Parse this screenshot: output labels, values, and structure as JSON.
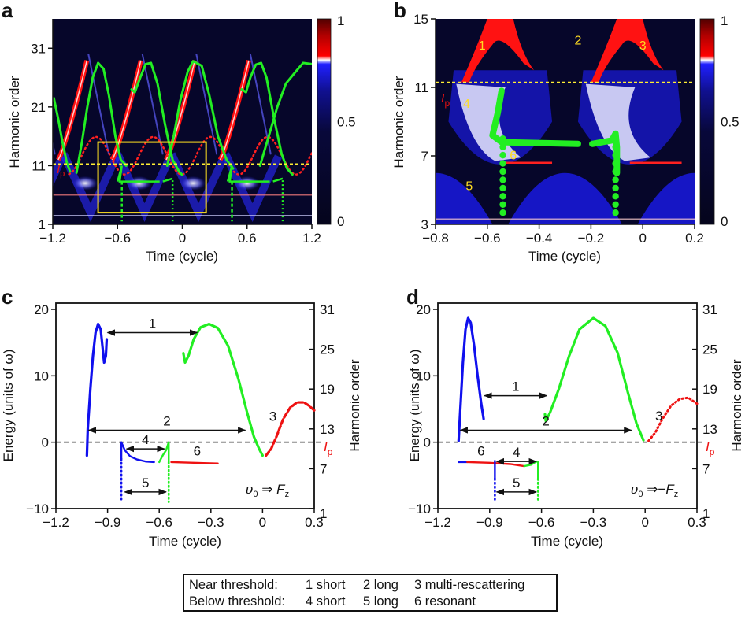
{
  "chart_data": [
    {
      "panel": "a",
      "type": "heatmap",
      "title": "",
      "xlabel": "Time (cycle)",
      "ylabel": "Harmonic order",
      "xlim": [
        -1.2,
        1.2
      ],
      "ylim": [
        1,
        36
      ],
      "xticks": [
        -1.2,
        -0.6,
        0,
        0.6,
        1.2
      ],
      "xtick_labels": [
        "−1.2",
        "−0.6",
        "0",
        "0.6",
        "1.2"
      ],
      "yticks": [
        1,
        11,
        21,
        31
      ],
      "ytick_labels": [
        "1",
        "11",
        "21",
        "31"
      ],
      "colorbar": {
        "range": [
          0,
          1
        ],
        "ticks": [
          0,
          0.5,
          1
        ],
        "tick_labels": [
          "0",
          "0.5",
          "1"
        ],
        "colors": [
          "#05051f",
          "#0a0a60",
          "#1a1aff",
          "#ffffff",
          "#ff0000",
          "#600000"
        ]
      },
      "ip_level": 11.3,
      "ip_label": "Ip",
      "highlight_box": {
        "x": [
          -0.78,
          0.22
        ],
        "y": [
          3,
          15
        ]
      },
      "overlays": [
        {
          "name": "classical returns (green)",
          "style": "solid",
          "color": "#22ee22",
          "arches": [
            {
              "start": -1.2,
              "peak": -0.95,
              "end": -1.02
            },
            {
              "start": -0.45,
              "peak": -0.28,
              "end": 0.02
            },
            {
              "start": -0.25,
              "peak": 0.22,
              "end": 0.5
            },
            {
              "start": 0.55,
              "peak": 0.72,
              "end": 1.02
            },
            {
              "start": 0.75,
              "peak": 1.2,
              "end": 1.2
            }
          ]
        },
        {
          "name": "multi-rescattering (red dotted)",
          "style": "dotted",
          "color": "#ff2222",
          "peaks_x": [
            -0.8,
            -0.25,
            0.28,
            0.8
          ],
          "peak_y": 16
        }
      ]
    },
    {
      "panel": "b",
      "type": "heatmap",
      "xlabel": "Time (cycle)",
      "ylabel": "Harmonic order",
      "xlim": [
        -0.8,
        0.2
      ],
      "ylim": [
        3,
        15
      ],
      "xticks": [
        -0.8,
        -0.6,
        -0.4,
        -0.2,
        0,
        0.2
      ],
      "xtick_labels": [
        "−0.8",
        "−0.6",
        "−0.4",
        "−0.2",
        "0",
        "0.2"
      ],
      "yticks": [
        3,
        7,
        11,
        15
      ],
      "ytick_labels": [
        "3",
        "7",
        "11",
        "15"
      ],
      "colorbar": {
        "range": [
          0,
          1
        ],
        "ticks": [
          0,
          0.5,
          1
        ],
        "tick_labels": [
          "0",
          "0.5",
          "1"
        ]
      },
      "ip_level": 11.3,
      "ip_label": "Ip",
      "annotations": [
        {
          "text": "1",
          "x": -0.62,
          "y": 13.2
        },
        {
          "text": "2",
          "x": -0.25,
          "y": 13.5
        },
        {
          "text": "3",
          "x": 0.0,
          "y": 13.2
        },
        {
          "text": "4",
          "x": -0.68,
          "y": 9.8
        },
        {
          "text": "5",
          "x": -0.67,
          "y": 5.0
        },
        {
          "text": "6",
          "x": -0.5,
          "y": 6.8
        }
      ]
    },
    {
      "panel": "c",
      "type": "line",
      "xlabel": "Time (cycle)",
      "ylabel": "Energy (units of ω)",
      "ylabel_right": "Harmonic order",
      "xlim": [
        -1.2,
        0.3
      ],
      "ylim": [
        -10,
        20
      ],
      "xticks": [
        -1.2,
        -0.9,
        -0.6,
        -0.3,
        0,
        0.3
      ],
      "xtick_labels": [
        "−1.2",
        "−0.9",
        "−0.6",
        "−0.3",
        "0",
        "0.3"
      ],
      "yticks": [
        -10,
        0,
        10,
        20
      ],
      "ytick_labels": [
        "−10",
        "0",
        "10",
        "20"
      ],
      "right_ticks": [
        {
          "energy": -10,
          "label": "1"
        },
        {
          "energy": -4,
          "label": "7"
        },
        {
          "energy": 2,
          "label": "13"
        },
        {
          "energy": 8,
          "label": "19"
        },
        {
          "energy": 14,
          "label": "25"
        },
        {
          "energy": 20,
          "label": "31"
        }
      ],
      "ip_label": "Ip",
      "condition": "υ₀ ⇒ F_z",
      "series": [
        {
          "name": "ionization (blue)",
          "color": "#1010ee",
          "style": "solid",
          "points": [
            [
              -1.02,
              -2
            ],
            [
              -1.015,
              2
            ],
            [
              -1.0,
              8
            ],
            [
              -0.985,
              13
            ],
            [
              -0.97,
              16.5
            ],
            [
              -0.955,
              17.8
            ],
            [
              -0.94,
              17
            ],
            [
              -0.93,
              14.5
            ],
            [
              -0.92,
              12
            ],
            [
              -0.91,
              13
            ],
            [
              -0.905,
              15.5
            ]
          ]
        },
        {
          "name": "return (green)",
          "color": "#22ee22",
          "style": "solid",
          "points": [
            [
              -0.46,
              13.4
            ],
            [
              -0.45,
              12
            ],
            [
              -0.43,
              13
            ],
            [
              -0.4,
              15.5
            ],
            [
              -0.36,
              17.3
            ],
            [
              -0.31,
              17.8
            ],
            [
              -0.26,
              17.2
            ],
            [
              -0.2,
              14.5
            ],
            [
              -0.14,
              9.5
            ],
            [
              -0.09,
              4.5
            ],
            [
              -0.05,
              0.8
            ],
            [
              -0.02,
              -1
            ],
            [
              0.0,
              -2
            ]
          ]
        },
        {
          "name": "multi-rescattering (red dashed)",
          "color": "#ee1111",
          "style": "dashed",
          "points": [
            [
              0.02,
              -2
            ],
            [
              0.05,
              -1
            ],
            [
              0.08,
              0.8
            ],
            [
              0.12,
              3.5
            ],
            [
              0.16,
              5.2
            ],
            [
              0.2,
              6
            ],
            [
              0.24,
              6
            ],
            [
              0.27,
              5.5
            ],
            [
              0.3,
              4.8
            ]
          ]
        },
        {
          "name": "below-threshold blue",
          "color": "#1010ee",
          "style": "solid",
          "points": [
            [
              -0.82,
              -2.5
            ],
            [
              -0.82,
              0
            ],
            [
              -0.8,
              -1.2
            ],
            [
              -0.77,
              -2.1
            ],
            [
              -0.73,
              -2.6
            ],
            [
              -0.68,
              -2.9
            ],
            [
              -0.63,
              -3
            ]
          ]
        },
        {
          "name": "below-threshold blue dotted",
          "color": "#1010ee",
          "style": "dotted",
          "points": [
            [
              -0.82,
              -2.5
            ],
            [
              -0.82,
              -9
            ]
          ]
        },
        {
          "name": "below-threshold green",
          "color": "#22ee22",
          "style": "solid",
          "points": [
            [
              -0.6,
              -3
            ],
            [
              -0.58,
              -2
            ],
            [
              -0.56,
              -1.2
            ],
            [
              -0.545,
              0
            ],
            [
              -0.545,
              -3
            ]
          ]
        },
        {
          "name": "below-threshold green dotted",
          "color": "#22ee22",
          "style": "dotted",
          "points": [
            [
              -0.545,
              -3
            ],
            [
              -0.545,
              -9
            ]
          ]
        },
        {
          "name": "resonant (red)",
          "color": "#ee1111",
          "style": "solid",
          "points": [
            [
              -0.53,
              -3
            ],
            [
              -0.4,
              -3.1
            ],
            [
              -0.26,
              -3.2
            ]
          ]
        }
      ],
      "arrows": [
        {
          "label": "1",
          "x": [
            -0.9,
            -0.38
          ],
          "y": 16.5
        },
        {
          "label": "2",
          "x": [
            -1.01,
            -0.1
          ],
          "y": 1.8
        },
        {
          "label": "4",
          "x": [
            -0.79,
            -0.57
          ],
          "y": -1.0
        },
        {
          "label": "5",
          "x": [
            -0.8,
            -0.56
          ],
          "y": -7.5
        }
      ],
      "curve_labels": [
        {
          "text": "3",
          "x": 0.06,
          "y": 3.2
        },
        {
          "text": "6",
          "x": -0.38,
          "y": -2.0
        }
      ]
    },
    {
      "panel": "d",
      "type": "line",
      "xlabel": "Time (cycle)",
      "ylabel": "Energy (units of ω)",
      "ylabel_right": "Harmonic order",
      "xlim": [
        -1.2,
        0.3
      ],
      "ylim": [
        -10,
        20
      ],
      "xticks": [
        -1.2,
        -0.9,
        -0.6,
        -0.3,
        0,
        0.3
      ],
      "xtick_labels": [
        "−1.2",
        "−0.9",
        "−0.6",
        "−0.3",
        "0",
        "0.3"
      ],
      "yticks": [
        -10,
        0,
        10,
        20
      ],
      "ytick_labels": [
        "−10",
        "0",
        "10",
        "20"
      ],
      "right_ticks": [
        {
          "energy": -10,
          "label": "1"
        },
        {
          "energy": -4,
          "label": "7"
        },
        {
          "energy": 2,
          "label": "13"
        },
        {
          "energy": 8,
          "label": "19"
        },
        {
          "energy": 14,
          "label": "25"
        },
        {
          "energy": 20,
          "label": "31"
        }
      ],
      "ip_label": "Ip",
      "condition": "υ₀ ⇒ −F_z",
      "series": [
        {
          "name": "ionization (blue)",
          "color": "#1010ee",
          "style": "solid",
          "points": [
            [
              -1.08,
              0.2
            ],
            [
              -1.07,
              5
            ],
            [
              -1.055,
              12
            ],
            [
              -1.04,
              17
            ],
            [
              -1.025,
              18.7
            ],
            [
              -1.01,
              18
            ],
            [
              -0.99,
              14.5
            ],
            [
              -0.97,
              10
            ],
            [
              -0.95,
              6
            ],
            [
              -0.935,
              3.5
            ]
          ]
        },
        {
          "name": "return (green)",
          "color": "#22ee22",
          "style": "solid",
          "points": [
            [
              -0.58,
              4.2
            ],
            [
              -0.575,
              3.2
            ],
            [
              -0.55,
              4.5
            ],
            [
              -0.5,
              8
            ],
            [
              -0.44,
              13
            ],
            [
              -0.38,
              17
            ],
            [
              -0.3,
              18.7
            ],
            [
              -0.23,
              17.5
            ],
            [
              -0.16,
              13.5
            ],
            [
              -0.1,
              7.5
            ],
            [
              -0.05,
              2.8
            ],
            [
              -0.01,
              0.3
            ]
          ]
        },
        {
          "name": "multi-rescattering (red dotted)",
          "color": "#ee1111",
          "style": "dotted",
          "points": [
            [
              0.02,
              0.2
            ],
            [
              0.06,
              1.5
            ],
            [
              0.1,
              3.5
            ],
            [
              0.15,
              5.5
            ],
            [
              0.2,
              6.5
            ],
            [
              0.25,
              6.7
            ],
            [
              0.3,
              5.8
            ]
          ]
        },
        {
          "name": "resonant blue start",
          "color": "#1010ee",
          "style": "solid",
          "points": [
            [
              -1.08,
              -3
            ],
            [
              -1.03,
              -3
            ]
          ]
        },
        {
          "name": "resonant (red)",
          "color": "#ee1111",
          "style": "solid",
          "points": [
            [
              -1.03,
              -3
            ],
            [
              -0.9,
              -3.1
            ],
            [
              -0.78,
              -3.3
            ],
            [
              -0.7,
              -3.6
            ]
          ]
        },
        {
          "name": "below-threshold green",
          "color": "#22ee22",
          "style": "solid",
          "points": [
            [
              -0.7,
              -3.6
            ],
            [
              -0.66,
              -3.4
            ],
            [
              -0.63,
              -2.9
            ],
            [
              -0.62,
              -3
            ],
            [
              -0.62,
              -5.5
            ]
          ]
        },
        {
          "name": "below-threshold green dotted",
          "color": "#22ee22",
          "style": "dotted",
          "points": [
            [
              -0.62,
              -5.5
            ],
            [
              -0.62,
              -9
            ]
          ]
        },
        {
          "name": "below-threshold blue",
          "color": "#1010ee",
          "style": "solid",
          "points": [
            [
              -0.87,
              -2.8
            ],
            [
              -0.87,
              -5.5
            ]
          ]
        },
        {
          "name": "below-threshold blue dotted",
          "color": "#1010ee",
          "style": "dotted",
          "points": [
            [
              -0.87,
              -5.5
            ],
            [
              -0.87,
              -9
            ]
          ]
        }
      ],
      "arrows": [
        {
          "label": "1",
          "x": [
            -0.93,
            -0.57
          ],
          "y": 7.0
        },
        {
          "label": "2",
          "x": [
            -1.07,
            -0.08
          ],
          "y": 1.8
        },
        {
          "label": "4",
          "x": [
            -0.86,
            -0.63
          ],
          "y": -2.9
        },
        {
          "label": "5",
          "x": [
            -0.86,
            -0.63
          ],
          "y": -7.5
        }
      ],
      "curve_labels": [
        {
          "text": "3",
          "x": 0.08,
          "y": 3.3
        },
        {
          "text": "6",
          "x": -0.95,
          "y": -2.0
        }
      ]
    }
  ],
  "panels": {
    "a": {
      "letter": "a",
      "xlabel": "Time (cycle)",
      "ylabel": "Harmonic order",
      "ip": "I",
      "ip_sub": "p"
    },
    "b": {
      "letter": "b",
      "xlabel": "Time (cycle)",
      "ylabel": "Harmonic order",
      "ip": "I",
      "ip_sub": "p"
    },
    "c": {
      "letter": "c",
      "xlabel": "Time (cycle)",
      "ylabel": "Energy (units of ω)",
      "ylabel_right": "Harmonic order",
      "ip": "I",
      "ip_sub": "p",
      "cond_v": "υ",
      "cond_sub": "0",
      "cond_arrow": " ⇒ ",
      "cond_f": "F",
      "cond_fsub": "z"
    },
    "d": {
      "letter": "d",
      "xlabel": "Time (cycle)",
      "ylabel": "Energy (units of ω)",
      "ylabel_right": "Harmonic order",
      "ip": "I",
      "ip_sub": "p",
      "cond_v": "υ",
      "cond_sub": "0",
      "cond_arrow": " ⇒−",
      "cond_f": "F",
      "cond_fsub": "z"
    }
  },
  "legend": {
    "rows": [
      {
        "category": "Near threshold:",
        "items": [
          "1 short",
          "2 long",
          "3 multi-rescattering"
        ]
      },
      {
        "category": "Below threshold:",
        "items": [
          "4 short",
          "5 long",
          "6 resonant"
        ]
      }
    ]
  }
}
